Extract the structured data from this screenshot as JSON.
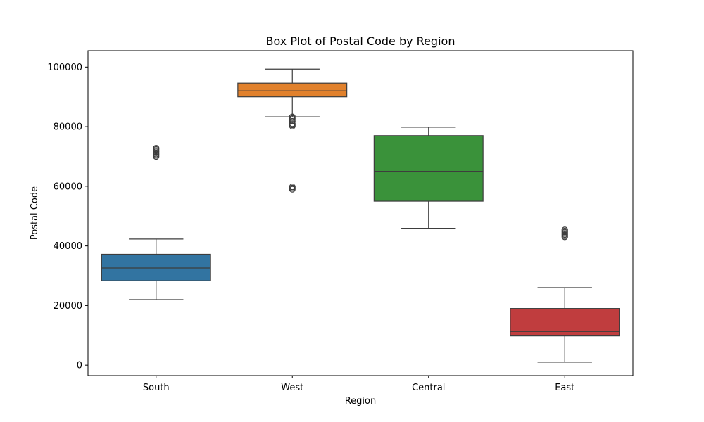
{
  "chart_data": {
    "type": "box",
    "title": "Box Plot of Postal Code by Region",
    "xlabel": "Region",
    "ylabel": "Postal Code",
    "ylim": [
      -3500,
      105500
    ],
    "yticks": [
      0,
      20000,
      40000,
      60000,
      80000,
      100000
    ],
    "ytick_labels": [
      "0",
      "20000",
      "40000",
      "60000",
      "80000",
      "100000"
    ],
    "grid": false,
    "legend": "none",
    "categories": [
      "South",
      "West",
      "Central",
      "East"
    ],
    "boxes": [
      {
        "category": "South",
        "color": "#3274a1",
        "whisker_low": 22000,
        "q1": 28300,
        "median": 32600,
        "q3": 37200,
        "whisker_high": 42300,
        "outliers": [
          70000,
          70400,
          70800,
          71200,
          71600,
          72000,
          72400,
          72800
        ]
      },
      {
        "category": "West",
        "color": "#e1812c",
        "whisker_low": 83300,
        "q1": 90000,
        "median": 92000,
        "q3": 94600,
        "whisker_high": 99300,
        "outliers": [
          59000,
          59400,
          59800,
          80200,
          80600,
          81000,
          81800,
          82300,
          82800,
          83300
        ]
      },
      {
        "category": "Central",
        "color": "#3a923a",
        "whisker_low": 45900,
        "q1": 55000,
        "median": 65000,
        "q3": 77000,
        "whisker_high": 79800,
        "outliers": []
      },
      {
        "category": "East",
        "color": "#c03d3e",
        "whisker_low": 1000,
        "q1": 9800,
        "median": 11300,
        "q3": 19000,
        "whisker_high": 26000,
        "outliers": [
          43000,
          43400,
          43800,
          44200,
          44600,
          45000,
          45400
        ]
      }
    ]
  }
}
